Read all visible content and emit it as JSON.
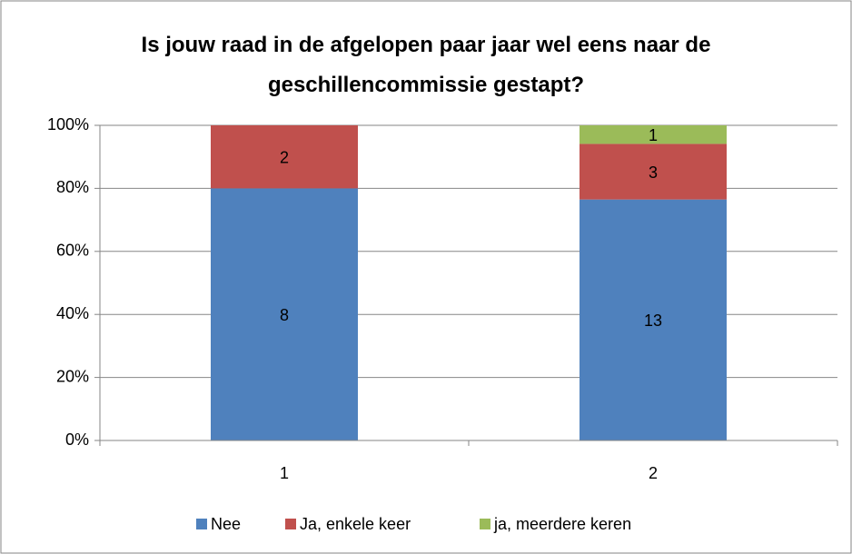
{
  "chart_data": {
    "type": "bar",
    "stacked": "percent",
    "title": "Is jouw raad in de afgelopen paar jaar wel eens naar de geschillencommissie gestapt?",
    "categories": [
      "1",
      "2"
    ],
    "series": [
      {
        "name": "Nee",
        "color": "#4f81bd",
        "values": [
          8,
          13
        ]
      },
      {
        "name": "Ja, enkele keer",
        "color": "#c0504d",
        "values": [
          2,
          3
        ]
      },
      {
        "name": "ja, meerdere keren",
        "color": "#9bbb59",
        "values": [
          null,
          1
        ]
      }
    ],
    "ylim": [
      0,
      100
    ],
    "yticks": [
      {
        "value": 0,
        "label": "0%"
      },
      {
        "value": 20,
        "label": "20%"
      },
      {
        "value": 40,
        "label": "40%"
      },
      {
        "value": 60,
        "label": "60%"
      },
      {
        "value": 80,
        "label": "80%"
      },
      {
        "value": 100,
        "label": "100%"
      }
    ],
    "grid": true,
    "legend": "bottom"
  }
}
